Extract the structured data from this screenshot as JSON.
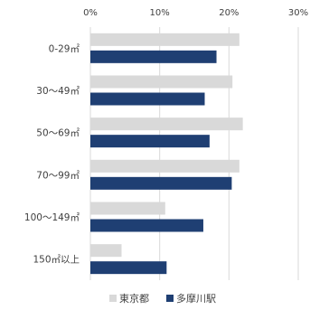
{
  "chart_data": {
    "type": "bar",
    "orientation": "horizontal",
    "title": "",
    "xlabel": "",
    "ylabel": "",
    "categories": [
      "0-29㎡",
      "30～49㎡",
      "50～69㎡",
      "70～99㎡",
      "100～149㎡",
      "150㎡以上"
    ],
    "series": [
      {
        "name": "東京都",
        "color": "#d9d9d9",
        "values": [
          21.5,
          20.5,
          22.0,
          21.5,
          10.8,
          4.5
        ]
      },
      {
        "name": "多摩川駅",
        "color": "#1f3f73",
        "values": [
          18.2,
          16.5,
          17.2,
          20.4,
          16.3,
          11.0
        ]
      }
    ],
    "xlim": [
      0,
      30
    ],
    "ticks": [
      0,
      10,
      20,
      30
    ],
    "tick_labels": [
      "0%",
      "10%",
      "20%",
      "30%"
    ],
    "grid": true,
    "legend_position": "bottom"
  }
}
